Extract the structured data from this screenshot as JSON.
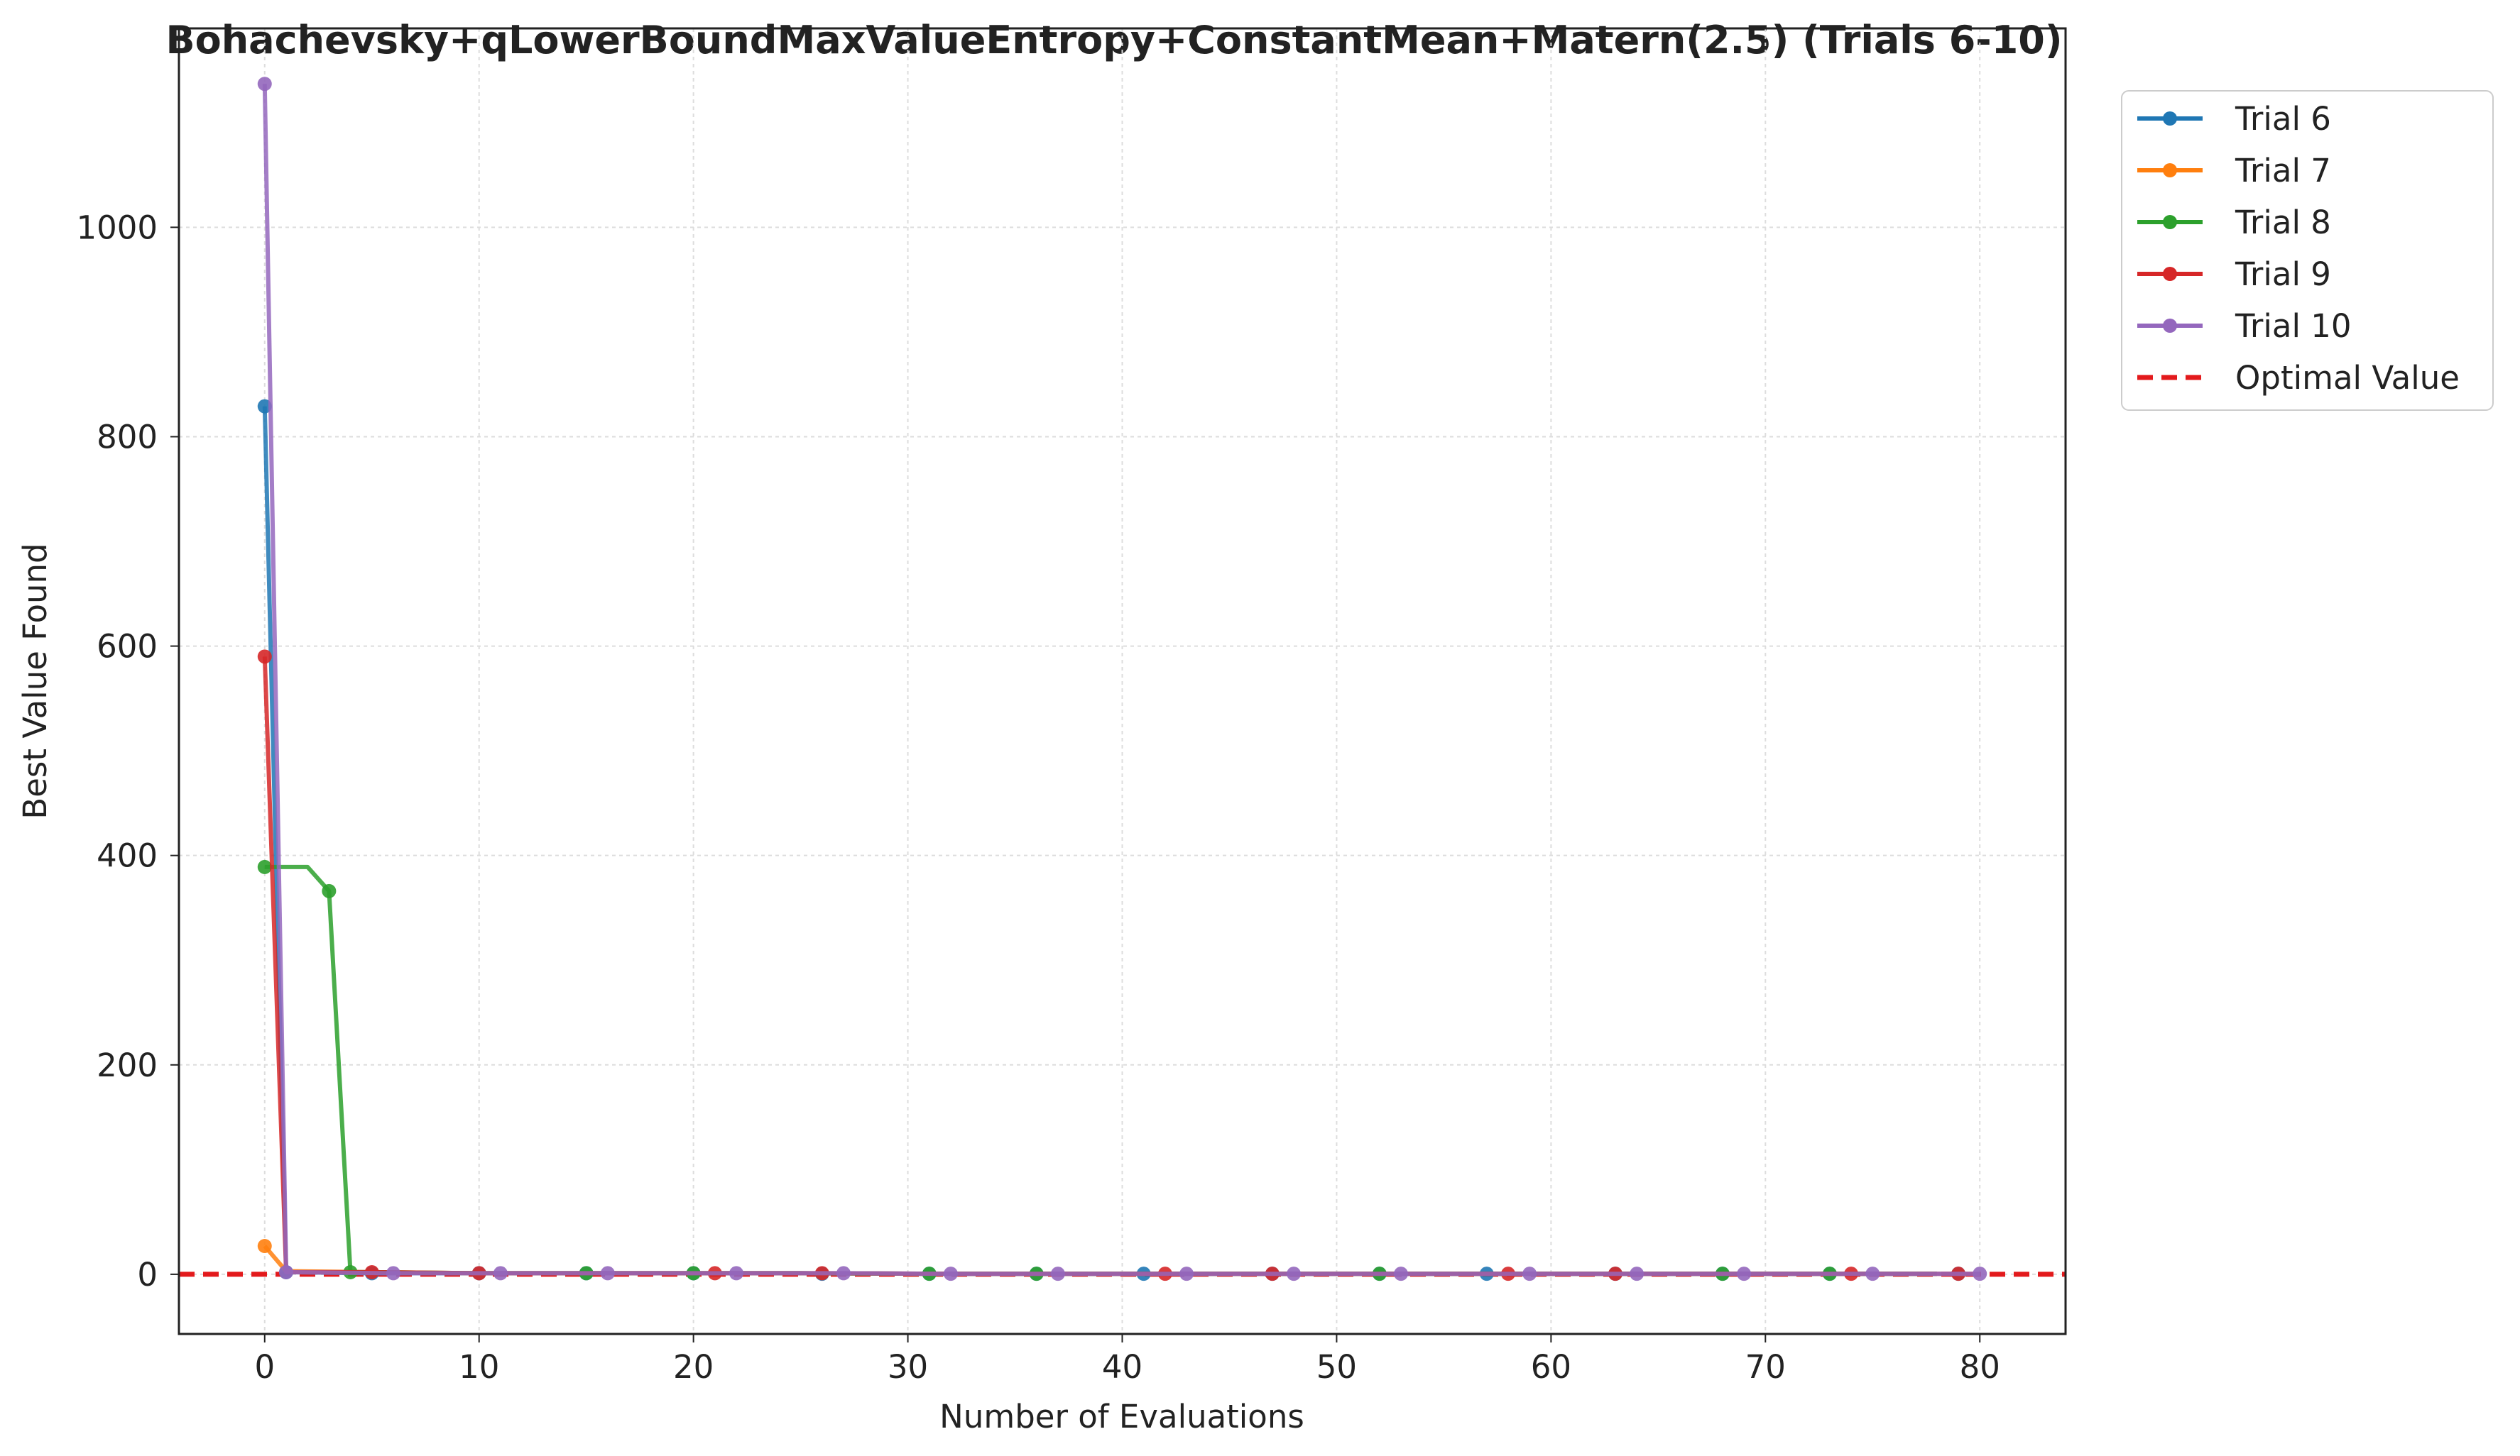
{
  "chart_data": {
    "type": "line",
    "title": "Bohachevsky+qLowerBoundMaxValueEntropy+ConstantMean+Matern(2.5) (Trials 6-10)",
    "xlabel": "Number of Evaluations",
    "ylabel": "Best Value Found",
    "xlim": [
      -4,
      84
    ],
    "ylim": [
      -57,
      1190
    ],
    "xticks": [
      0,
      10,
      20,
      30,
      40,
      50,
      60,
      70,
      80
    ],
    "yticks": [
      0,
      200,
      400,
      600,
      800,
      1000
    ],
    "grid": true,
    "legend_position": "outside-top-right",
    "optimal_value": 0,
    "optimal_label": "Optimal Value",
    "optimal_color": "#e31a1c",
    "series": [
      {
        "name": "Trial 6",
        "color": "#1f77b4",
        "x": [
          0,
          1,
          5,
          10,
          15,
          20,
          25,
          31,
          36,
          41,
          46,
          52,
          57,
          62,
          68,
          73,
          78
        ],
        "values": [
          829,
          2,
          1,
          1,
          1,
          1,
          1,
          0.5,
          0.5,
          0.5,
          0.5,
          0.5,
          0.5,
          0.5,
          0.5,
          0.5,
          0.5
        ],
        "markers": [
          0,
          1,
          5,
          10,
          15,
          20,
          26,
          31,
          36,
          41,
          47,
          52,
          57,
          63,
          68,
          73,
          79
        ]
      },
      {
        "name": "Trial 7",
        "color": "#ff7f0e",
        "x": [
          0,
          1,
          5,
          10,
          15,
          20,
          25,
          31,
          36,
          41,
          46,
          52,
          57,
          62,
          68,
          73,
          78
        ],
        "values": [
          27,
          3,
          2,
          1,
          1,
          1,
          1,
          0.5,
          0.5,
          0.5,
          0.5,
          0.5,
          0.5,
          0.5,
          0.5,
          0.5,
          0.5
        ],
        "markers": [
          0
        ]
      },
      {
        "name": "Trial 8",
        "color": "#2ca02c",
        "x": [
          0,
          1,
          2,
          3,
          4,
          5,
          10,
          15,
          20,
          25,
          31,
          36,
          41,
          46,
          52,
          57,
          62,
          68,
          73,
          78
        ],
        "values": [
          389,
          389,
          389,
          366,
          2,
          2,
          1,
          1,
          1,
          1,
          0.5,
          0.5,
          0.5,
          0.5,
          0.5,
          0.5,
          0.5,
          0.5,
          0.5,
          0.5
        ],
        "markers": [
          0,
          3,
          4,
          15,
          20,
          31,
          36,
          52,
          68,
          73
        ]
      },
      {
        "name": "Trial 9",
        "color": "#d62728",
        "x": [
          0,
          1,
          5,
          10,
          16,
          21,
          26,
          32,
          37,
          42,
          47,
          53,
          58,
          63,
          69,
          74,
          79
        ],
        "values": [
          590,
          2,
          2,
          1,
          1,
          1,
          1,
          0.5,
          0.5,
          0.5,
          0.5,
          0.5,
          0.5,
          0.5,
          0.5,
          0.5,
          0.5
        ],
        "markers": [
          0,
          5,
          10,
          21,
          26,
          42,
          47,
          58,
          63,
          74,
          79
        ]
      },
      {
        "name": "Trial 10",
        "color": "#9467bd",
        "x": [
          0,
          1,
          6,
          11,
          16,
          22,
          27,
          32,
          37,
          43,
          48,
          53,
          59,
          64,
          69,
          75,
          80
        ],
        "values": [
          1137,
          2,
          1,
          1,
          1,
          1,
          1,
          0.5,
          0.5,
          0.5,
          0.5,
          0.5,
          0.5,
          0.5,
          0.5,
          0.5,
          0.5
        ],
        "markers": [
          0,
          1,
          6,
          11,
          16,
          22,
          27,
          32,
          37,
          43,
          48,
          53,
          59,
          64,
          69,
          75,
          80
        ]
      }
    ]
  }
}
